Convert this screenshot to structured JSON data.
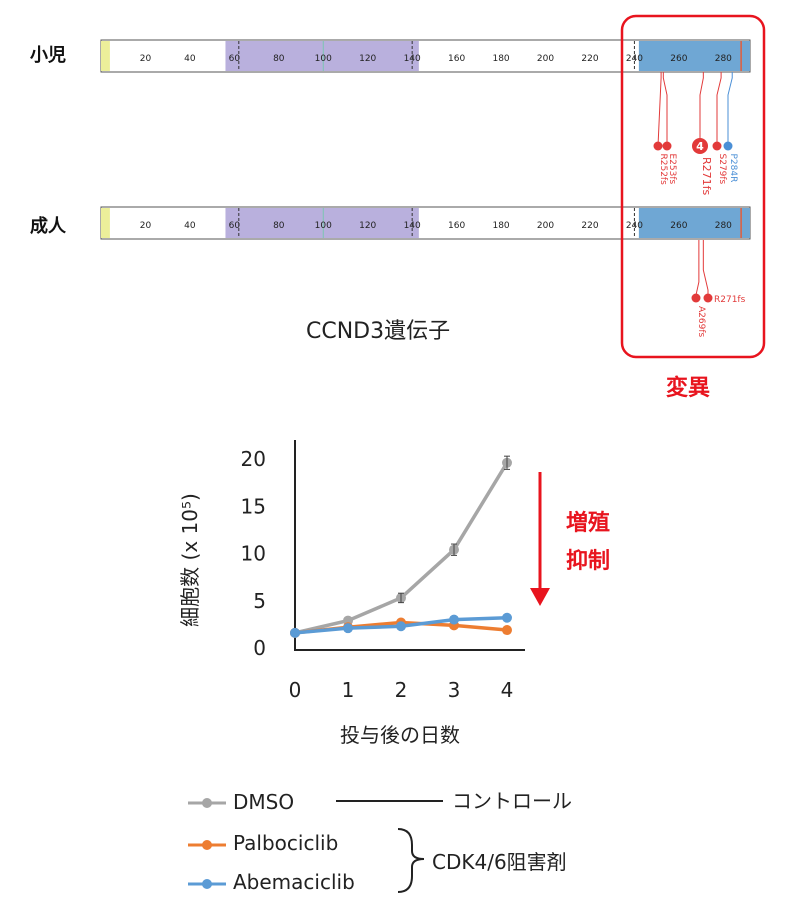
{
  "gene_map": {
    "row_labels": [
      "小児",
      "成人"
    ],
    "axis_ticks": [
      "20",
      "40",
      "60",
      "80",
      "100",
      "120",
      "140",
      "160",
      "180",
      "200",
      "220",
      "240",
      "260",
      "280"
    ],
    "title": "CCND3遺伝子",
    "highlight_label": "変異",
    "max_position": 292,
    "domains": [
      {
        "start": 0,
        "end": 4,
        "color": "#ecef9a"
      },
      {
        "start": 56,
        "end": 143,
        "color": "#b9b0dd"
      },
      {
        "start": 242,
        "end": 292,
        "color": "#6fa7d4"
      }
    ],
    "dashed_lines_at": [
      62,
      140,
      240
    ],
    "mutations_child": [
      {
        "label": "R252fs",
        "pos": 252,
        "color": "#e23a3a"
      },
      {
        "label": "E253fs",
        "pos": 253,
        "color": "#e23a3a"
      },
      {
        "label": "R271fs",
        "pos": 271,
        "color": "#e23a3a",
        "count": "4"
      },
      {
        "label": "S279fs",
        "pos": 279,
        "color": "#e23a3a"
      },
      {
        "label": "P284R",
        "pos": 284,
        "color": "#4a8fd6"
      }
    ],
    "mutations_adult": [
      {
        "label": "A269fs",
        "pos": 269,
        "color": "#e23a3a"
      },
      {
        "label": "R271fs",
        "pos": 271,
        "color": "#e23a3a"
      }
    ]
  },
  "chart_data": {
    "type": "line",
    "x": [
      0,
      1,
      2,
      3,
      4
    ],
    "xlabel": "投与後の日数",
    "ylabel": "細胞数 (x 10⁵)",
    "ylim": [
      0,
      20
    ],
    "yticks": [
      0,
      5,
      10,
      15,
      20
    ],
    "series": [
      {
        "name": "DMSO",
        "color": "#a6a6a6",
        "values": [
          1.6,
          2.9,
          5.3,
          10.4,
          19.6
        ]
      },
      {
        "name": "Palbociclib",
        "color": "#ed7d31",
        "values": [
          1.6,
          2.2,
          2.7,
          2.4,
          1.9
        ]
      },
      {
        "name": "Abemaciclib",
        "color": "#5b9bd5",
        "values": [
          1.6,
          2.1,
          2.3,
          3.0,
          3.2
        ]
      }
    ],
    "annotation": [
      "増殖",
      "抑制"
    ]
  },
  "legend": {
    "control_label": "コントロール",
    "inhibitor_label": "CDK4/6阻害剤"
  }
}
